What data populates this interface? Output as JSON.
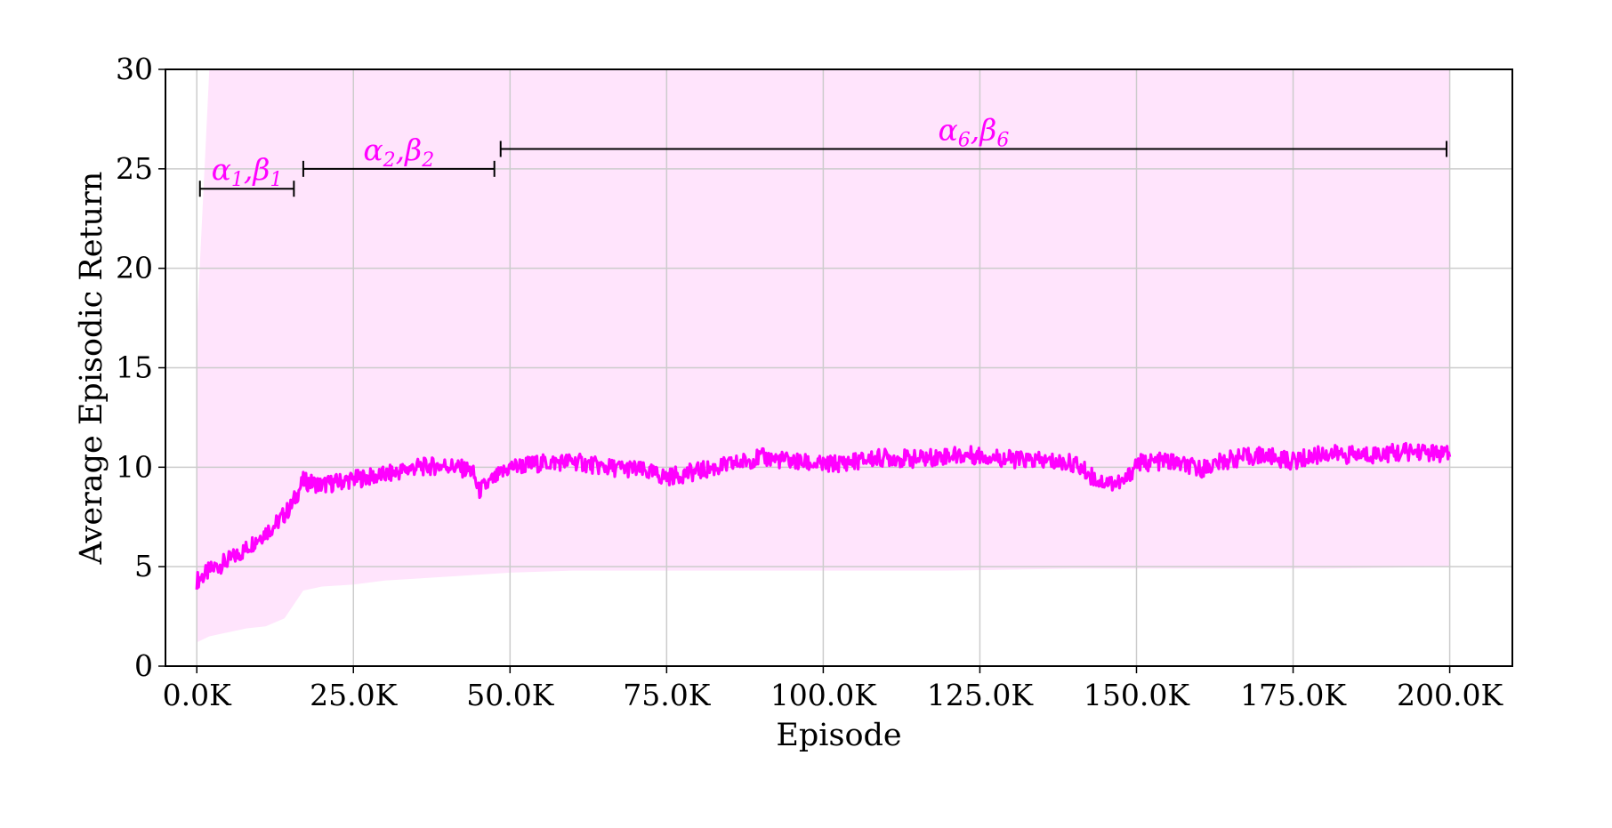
{
  "chart_data": {
    "type": "line",
    "title": "",
    "xlabel": "Episode",
    "ylabel": "Average Episodic Return",
    "xlim": [
      -5000,
      210000
    ],
    "ylim": [
      0,
      30
    ],
    "x_ticks": [
      0,
      25000,
      50000,
      75000,
      100000,
      125000,
      150000,
      175000,
      200000
    ],
    "x_tick_labels": [
      "0.0K",
      "25.0K",
      "50.0K",
      "75.0K",
      "100.0K",
      "125.0K",
      "150.0K",
      "175.0K",
      "200.0K"
    ],
    "y_ticks": [
      0,
      5,
      10,
      15,
      20,
      25,
      30
    ],
    "y_tick_labels": [
      "0",
      "5",
      "10",
      "15",
      "20",
      "25",
      "30"
    ],
    "grid": true,
    "legend": "none",
    "line_color": "#ff00ff",
    "band_color": "#ffe4fc",
    "annotation_color": "#ff00ff",
    "series": [
      {
        "x": [
          0,
          2500,
          5000,
          7500,
          10000,
          12500,
          15000,
          17000,
          20000,
          25000,
          30000,
          35000,
          40000,
          44000,
          45000,
          50000,
          55000,
          60000,
          65000,
          70000,
          75000,
          80000,
          85000,
          90000,
          95000,
          100000,
          105000,
          110000,
          115000,
          120000,
          125000,
          130000,
          135000,
          140000,
          144000,
          148000,
          150000,
          155000,
          160000,
          165000,
          170000,
          175000,
          180000,
          185000,
          190000,
          195000,
          200000
        ],
        "values": [
          4.3,
          4.9,
          5.3,
          5.8,
          6.5,
          7.1,
          8.0,
          9.3,
          9.1,
          9.4,
          9.6,
          10.0,
          10.1,
          9.8,
          8.8,
          10.0,
          10.2,
          10.3,
          10.0,
          9.9,
          9.5,
          9.8,
          10.1,
          10.5,
          10.3,
          10.1,
          10.3,
          10.5,
          10.4,
          10.6,
          10.6,
          10.4,
          10.3,
          10.2,
          9.3,
          9.2,
          10.2,
          10.3,
          9.9,
          10.4,
          10.6,
          10.3,
          10.7,
          10.6,
          10.7,
          10.8,
          10.6
        ]
      }
    ],
    "band": {
      "x": [
        0,
        2000,
        5000,
        8000,
        11000,
        14000,
        17000,
        20000,
        25000,
        30000,
        35000,
        40000,
        45000,
        50000,
        60000,
        80000,
        100000,
        120000,
        140000,
        160000,
        180000,
        200000
      ],
      "lower": [
        1.2,
        1.5,
        1.7,
        1.9,
        2.0,
        2.4,
        3.8,
        4.0,
        4.1,
        4.3,
        4.4,
        4.5,
        4.6,
        4.7,
        4.8,
        4.8,
        4.8,
        4.8,
        4.9,
        4.9,
        4.9,
        5.0
      ],
      "upper": [
        17,
        30,
        30,
        30,
        30,
        30,
        30,
        30,
        30,
        30,
        30,
        30,
        30,
        30,
        30,
        30,
        30,
        30,
        30,
        30,
        30,
        30
      ]
    },
    "annotations": [
      {
        "label_greek": [
          "α",
          "β"
        ],
        "subscript": "1",
        "x_start": 500,
        "x_end": 15500,
        "y": 24
      },
      {
        "label_greek": [
          "α",
          "β"
        ],
        "subscript": "2",
        "x_start": 17000,
        "x_end": 47500,
        "y": 25
      },
      {
        "label_greek": [
          "α",
          "β"
        ],
        "subscript": "6",
        "x_start": 48500,
        "x_end": 199500,
        "y": 26
      }
    ]
  }
}
